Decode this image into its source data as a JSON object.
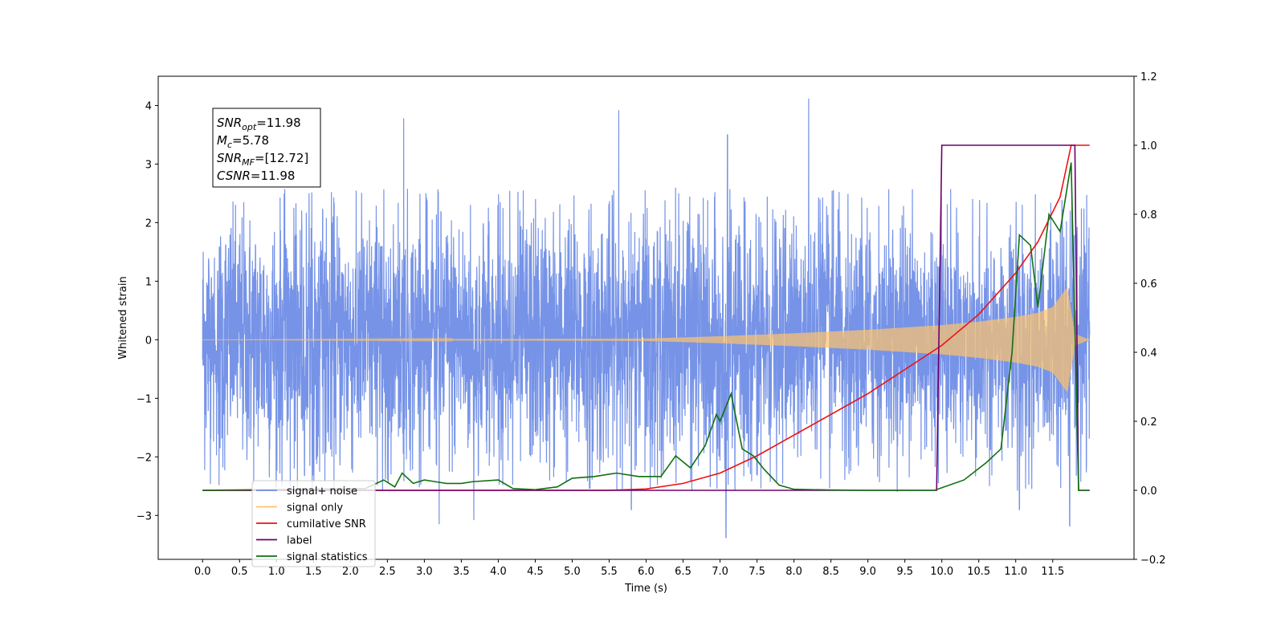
{
  "chart_data": {
    "type": "line",
    "title": "",
    "xlabel": "Time (s)",
    "ylabel": "Whitened strain",
    "ylabel_right": "",
    "xlim": [
      -0.6,
      12.6
    ],
    "ylim": [
      -3.75,
      4.5
    ],
    "ylim_right": [
      -0.2,
      1.2
    ],
    "x_ticks": [
      0.0,
      0.5,
      1.0,
      1.5,
      2.0,
      2.5,
      3.0,
      3.5,
      4.0,
      4.5,
      5.0,
      5.5,
      6.0,
      6.5,
      7.0,
      7.5,
      8.0,
      8.5,
      9.0,
      9.5,
      10.0,
      10.5,
      11.0,
      11.5
    ],
    "x_tick_labels": [
      "0.0",
      "0.5",
      "1.0",
      "1.5",
      "2.0",
      "2.5",
      "3.0",
      "3.5",
      "4.0",
      "4.5",
      "5.0",
      "5.5",
      "6.0",
      "6.5",
      "7.0",
      "7.5",
      "8.0",
      "8.5",
      "9.0",
      "9.5",
      "10.0",
      "10.5",
      "11.0",
      "11.5"
    ],
    "y_ticks": [
      -3,
      -2,
      -1,
      0,
      1,
      2,
      3,
      4
    ],
    "y_tick_labels": [
      "−3",
      "−2",
      "−1",
      "0",
      "1",
      "2",
      "3",
      "4"
    ],
    "y_right_ticks": [
      -0.2,
      0.0,
      0.2,
      0.4,
      0.6,
      0.8,
      1.0,
      1.2
    ],
    "y_right_tick_labels": [
      "−0.2",
      "0.0",
      "0.2",
      "0.4",
      "0.6",
      "0.8",
      "1.0",
      "1.2"
    ],
    "grid": false,
    "legend_position": "lower-left",
    "legend": [
      {
        "label": "signal+ noise",
        "color": "#6f8de6"
      },
      {
        "label": "signal only",
        "color": "#ffc36b"
      },
      {
        "label": "cumilative SNR",
        "color": "#ee1111"
      },
      {
        "label": "label",
        "color": "#6c006c"
      },
      {
        "label": "signal statistics",
        "color": "#107010"
      }
    ],
    "annotation": {
      "lines": [
        {
          "base": "SNR",
          "sub": "opt",
          "value": "=11.98"
        },
        {
          "base": "M",
          "sub": "c",
          "value": "=5.78"
        },
        {
          "base": "SNR",
          "sub": "MF",
          "value": "=[12.72]"
        },
        {
          "base": "CSNR",
          "sub": "",
          "value": "=11.98"
        }
      ]
    },
    "noise": {
      "x_range": [
        0.0,
        12.0
      ],
      "typical_amplitude": 1.5,
      "peak_spikes": [
        {
          "x": 2.72,
          "y": 3.78
        },
        {
          "x": 5.63,
          "y": 3.92
        },
        {
          "x": 7.1,
          "y": 3.5
        },
        {
          "x": 8.2,
          "y": 4.12
        },
        {
          "x": 7.08,
          "y": -3.38
        },
        {
          "x": 11.73,
          "y": -3.18
        },
        {
          "x": 3.2,
          "y": -3.15
        },
        {
          "x": 3.67,
          "y": -3.08
        },
        {
          "x": 5.8,
          "y": -2.9
        },
        {
          "x": 11.05,
          "y": -2.9
        }
      ]
    },
    "signal_envelope": {
      "x": [
        0.0,
        6.0,
        7.0,
        8.0,
        9.0,
        9.5,
        10.0,
        10.5,
        11.0,
        11.3,
        11.5,
        11.7,
        11.8,
        12.0
      ],
      "y": [
        0.0,
        0.02,
        0.06,
        0.11,
        0.17,
        0.21,
        0.25,
        0.31,
        0.39,
        0.46,
        0.56,
        0.9,
        0.1,
        0.0
      ]
    },
    "series": [
      {
        "name": "cumilative SNR",
        "axis": "right",
        "color": "#ee1111",
        "x": [
          0.0,
          5.5,
          6.0,
          6.5,
          7.0,
          7.5,
          8.0,
          8.5,
          9.0,
          9.5,
          10.0,
          10.5,
          11.0,
          11.3,
          11.6,
          11.75,
          11.85,
          12.0
        ],
        "y": [
          0.0,
          0.0,
          0.004,
          0.02,
          0.05,
          0.1,
          0.16,
          0.22,
          0.28,
          0.35,
          0.42,
          0.51,
          0.63,
          0.72,
          0.85,
          1.0,
          1.0,
          1.0
        ]
      },
      {
        "name": "label",
        "axis": "right",
        "color": "#6c006c",
        "x": [
          0.0,
          9.93,
          10.0,
          11.8,
          11.85,
          12.0
        ],
        "y": [
          0.0,
          0.0,
          1.0,
          1.0,
          0.0,
          0.0
        ]
      },
      {
        "name": "signal statistics",
        "axis": "right",
        "color": "#107010",
        "x": [
          0.0,
          2.2,
          2.45,
          2.6,
          2.7,
          2.85,
          3.0,
          3.15,
          3.3,
          3.5,
          3.65,
          4.0,
          4.2,
          4.5,
          4.8,
          5.0,
          5.3,
          5.6,
          5.9,
          6.2,
          6.4,
          6.6,
          6.8,
          6.95,
          7.0,
          7.15,
          7.3,
          7.45,
          7.6,
          7.8,
          8.0,
          8.5,
          9.0,
          9.9,
          10.3,
          10.6,
          10.8,
          10.95,
          11.05,
          11.2,
          11.3,
          11.45,
          11.6,
          11.75,
          11.85,
          12.0
        ],
        "y": [
          0.0,
          0.005,
          0.03,
          0.01,
          0.05,
          0.02,
          0.03,
          0.025,
          0.02,
          0.02,
          0.025,
          0.03,
          0.005,
          0.002,
          0.01,
          0.035,
          0.04,
          0.05,
          0.04,
          0.04,
          0.1,
          0.065,
          0.13,
          0.22,
          0.2,
          0.28,
          0.12,
          0.1,
          0.06,
          0.015,
          0.003,
          0.001,
          0.0,
          0.0,
          0.03,
          0.08,
          0.12,
          0.4,
          0.74,
          0.71,
          0.53,
          0.8,
          0.75,
          0.95,
          0.0,
          0.0
        ]
      }
    ]
  }
}
